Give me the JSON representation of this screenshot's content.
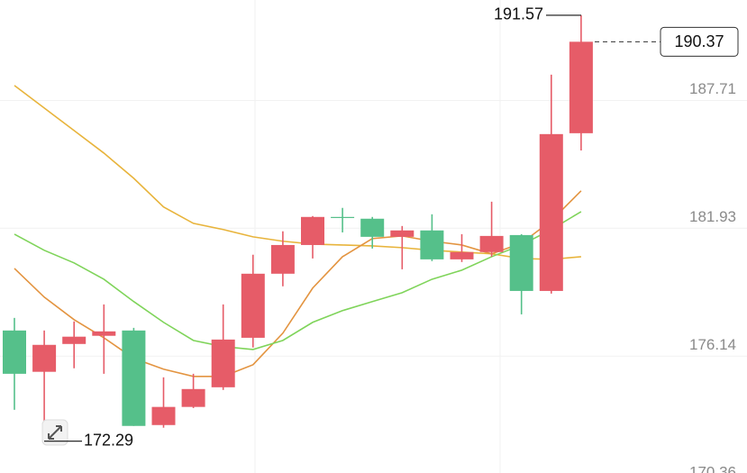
{
  "chart_data": {
    "type": "candlestick",
    "open": [
      177.3,
      175.43,
      176.69,
      177.06,
      177.3,
      173.02,
      173.84,
      174.73,
      176.97,
      179.87,
      181.17,
      182.44,
      182.36,
      181.54,
      181.83,
      180.52,
      180.85,
      181.62,
      179.09,
      186.23
    ],
    "high": [
      177.87,
      177.3,
      177.71,
      178.48,
      177.42,
      175.18,
      175.34,
      178.48,
      180.73,
      181.79,
      182.48,
      182.85,
      182.44,
      182.03,
      182.56,
      181.66,
      183.13,
      181.66,
      188.88,
      191.57
    ],
    "low": [
      173.71,
      172.29,
      175.59,
      175.34,
      172.98,
      172.9,
      173.79,
      174.61,
      176.53,
      179.3,
      180.56,
      181.74,
      181.01,
      180.07,
      180.44,
      180.4,
      180.64,
      178.03,
      178.97,
      185.45
    ],
    "close": [
      175.34,
      176.65,
      177.02,
      177.26,
      172.98,
      173.84,
      174.65,
      176.89,
      179.87,
      181.17,
      182.44,
      182.4,
      181.54,
      181.83,
      180.52,
      180.85,
      181.58,
      179.09,
      186.19,
      190.37
    ],
    "up_color": "#e65c68",
    "down_color": "#55c08a",
    "ma_lines": [
      {
        "color": "#e8b43c",
        "values": [
          188.39,
          187.37,
          186.35,
          185.33,
          184.19,
          182.89,
          182.15,
          181.87,
          181.54,
          181.34,
          181.21,
          181.17,
          181.13,
          181.05,
          180.93,
          180.85,
          180.77,
          180.56,
          180.52,
          180.64
        ]
      },
      {
        "color": "#e39440",
        "values": [
          180.11,
          178.81,
          177.79,
          176.97,
          176.04,
          175.55,
          175.22,
          175.22,
          175.75,
          177.18,
          179.22,
          180.64,
          181.46,
          181.58,
          181.34,
          181.17,
          180.77,
          181.25,
          182.27,
          183.62
        ]
      },
      {
        "color": "#7fd45a",
        "values": [
          181.66,
          180.93,
          180.36,
          179.62,
          178.61,
          177.67,
          176.85,
          176.57,
          176.44,
          176.85,
          177.67,
          178.2,
          178.61,
          179.01,
          179.62,
          180.03,
          180.64,
          181.17,
          181.87,
          182.68
        ]
      }
    ],
    "ylim": [
      170.36,
      192.26
    ],
    "yticks": [
      170.36,
      176.14,
      181.93,
      187.71
    ],
    "grid": true,
    "max_label": 191.57,
    "min_label": 172.29,
    "last_price": 190.37
  }
}
